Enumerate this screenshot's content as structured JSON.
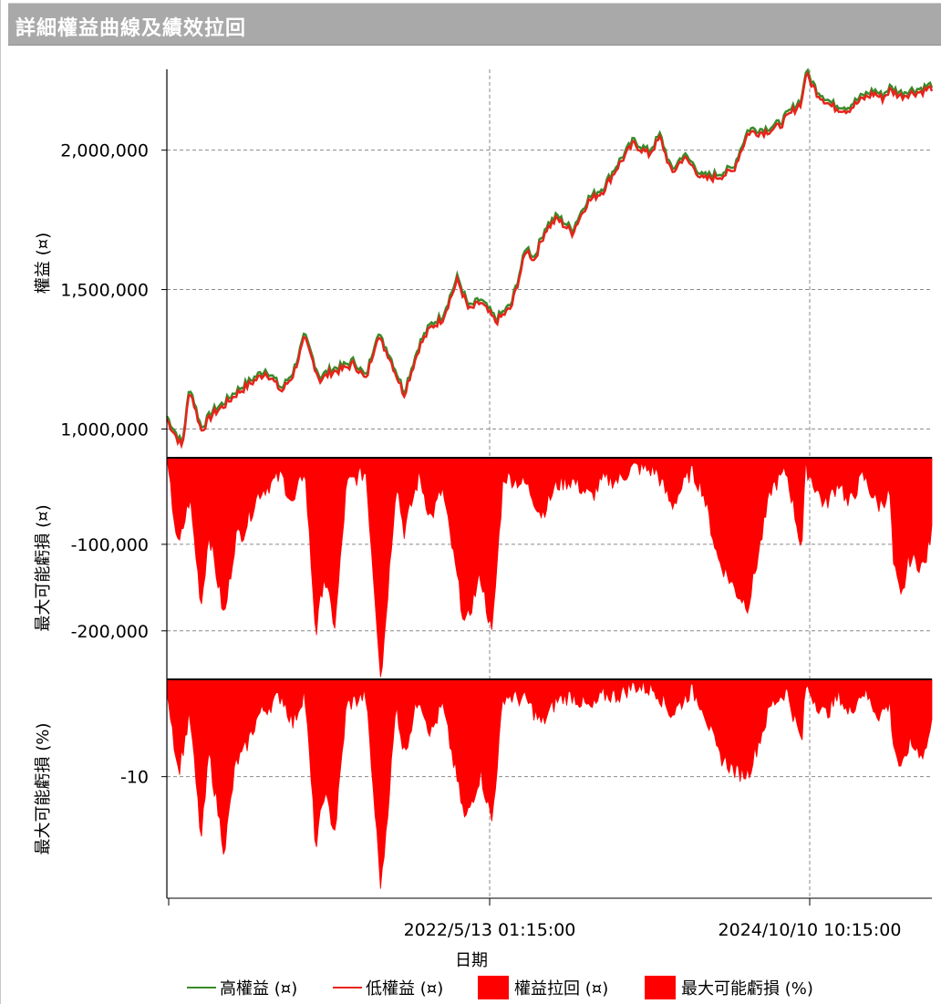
{
  "window": {
    "title": "詳細權益曲線及績效拉回"
  },
  "colors": {
    "high_equity": "#3a8a2a",
    "low_equity": "#e8231a",
    "drawdown": "#ff0000",
    "grid": "#8a8a8a"
  },
  "chart_data": {
    "type": "line",
    "xlabel": "日期",
    "x_tick_labels": [
      "2022/5/13 01:15:00",
      "2024/10/10 10:15:00"
    ],
    "panels": [
      {
        "name": "equity",
        "ylabel": "權益 (¤)",
        "ylim": [
          900000,
          2290000
        ],
        "yticks": [
          1000000,
          1500000,
          2000000
        ],
        "ytick_labels": [
          "1,000,000",
          "1,500,000",
          "2,000,000"
        ],
        "series": [
          {
            "name": "高權益 (¤)",
            "style": "line"
          },
          {
            "name": "低權益 (¤)",
            "style": "line"
          }
        ],
        "x": [
          0,
          0.02,
          0.03,
          0.045,
          0.06,
          0.075,
          0.09,
          0.11,
          0.13,
          0.15,
          0.165,
          0.18,
          0.2,
          0.215,
          0.23,
          0.245,
          0.26,
          0.275,
          0.29,
          0.31,
          0.33,
          0.345,
          0.36,
          0.38,
          0.395,
          0.41,
          0.43,
          0.45,
          0.47,
          0.48,
          0.495,
          0.51,
          0.53,
          0.55,
          0.57,
          0.59,
          0.61,
          0.63,
          0.645,
          0.66,
          0.675,
          0.69,
          0.7,
          0.72,
          0.74,
          0.76,
          0.78,
          0.8,
          0.83,
          0.835,
          0.85,
          0.87,
          0.89,
          0.91,
          0.925,
          0.935,
          0.945,
          0.96,
          0.97,
          0.985,
          1.0
        ],
        "values": [
          1040000,
          940000,
          1150000,
          1000000,
          1060000,
          1090000,
          1130000,
          1170000,
          1210000,
          1140000,
          1200000,
          1330000,
          1180000,
          1210000,
          1220000,
          1240000,
          1180000,
          1340000,
          1270000,
          1130000,
          1300000,
          1370000,
          1400000,
          1540000,
          1430000,
          1460000,
          1390000,
          1440000,
          1650000,
          1610000,
          1720000,
          1760000,
          1710000,
          1820000,
          1860000,
          1950000,
          2030000,
          1990000,
          2050000,
          1920000,
          1980000,
          1940000,
          1900000,
          1910000,
          1930000,
          2070000,
          2070000,
          2090000,
          2180000,
          2280000,
          2210000,
          2160000,
          2150000,
          2190000,
          2210000,
          2190000,
          2220000,
          2200000,
          2210000,
          2215000,
          2230000
        ]
      },
      {
        "name": "drawdown_amount",
        "ylabel": "最大可能虧損 (¤)",
        "ylim": [
          -255000,
          0
        ],
        "yticks": [
          -100000,
          -200000
        ],
        "ytick_labels": [
          "-100,000",
          "-200,000"
        ],
        "series": [
          {
            "name": "權益拉回 (¤)",
            "style": "area"
          }
        ],
        "x": [
          0,
          0.015,
          0.03,
          0.045,
          0.055,
          0.075,
          0.09,
          0.1,
          0.12,
          0.135,
          0.15,
          0.165,
          0.18,
          0.195,
          0.205,
          0.22,
          0.235,
          0.26,
          0.28,
          0.3,
          0.31,
          0.33,
          0.345,
          0.36,
          0.39,
          0.41,
          0.425,
          0.44,
          0.47,
          0.49,
          0.51,
          0.53,
          0.555,
          0.57,
          0.59,
          0.61,
          0.64,
          0.66,
          0.685,
          0.7,
          0.72,
          0.745,
          0.76,
          0.79,
          0.81,
          0.83,
          0.835,
          0.86,
          0.88,
          0.89,
          0.91,
          0.93,
          0.945,
          0.95,
          0.96,
          0.97,
          0.99,
          1.0
        ],
        "values": [
          -10000,
          -110000,
          -50000,
          -175000,
          -90000,
          -190000,
          -95000,
          -90000,
          -45000,
          -35000,
          -25000,
          -60000,
          -15000,
          -210000,
          -140000,
          -200000,
          -35000,
          -20000,
          -260000,
          -30000,
          -90000,
          -25000,
          -75000,
          -40000,
          -200000,
          -140000,
          -210000,
          -25000,
          -35000,
          -70000,
          -35000,
          -30000,
          -50000,
          -30000,
          -30000,
          -15000,
          -20000,
          -60000,
          -20000,
          -40000,
          -120000,
          -160000,
          -175000,
          -40000,
          -20000,
          -110000,
          -15000,
          -60000,
          -30000,
          -60000,
          -25000,
          -60000,
          -45000,
          -130000,
          -170000,
          -120000,
          -130000,
          -90000
        ]
      },
      {
        "name": "drawdown_percent",
        "ylabel": "最大可能虧損 (%)",
        "ylim": [
          -22.5,
          0
        ],
        "yticks": [
          -10
        ],
        "ytick_labels": [
          "-10"
        ],
        "series": [
          {
            "name": "最大可能虧損 (%)",
            "style": "area"
          }
        ],
        "x": [
          0,
          0.015,
          0.03,
          0.045,
          0.055,
          0.075,
          0.09,
          0.1,
          0.12,
          0.135,
          0.15,
          0.165,
          0.18,
          0.195,
          0.205,
          0.22,
          0.235,
          0.26,
          0.28,
          0.3,
          0.31,
          0.33,
          0.345,
          0.36,
          0.39,
          0.41,
          0.425,
          0.44,
          0.47,
          0.49,
          0.51,
          0.53,
          0.555,
          0.57,
          0.59,
          0.61,
          0.64,
          0.66,
          0.685,
          0.7,
          0.72,
          0.745,
          0.76,
          0.79,
          0.81,
          0.83,
          0.835,
          0.86,
          0.88,
          0.89,
          0.91,
          0.93,
          0.945,
          0.95,
          0.96,
          0.97,
          0.99,
          1.0
        ],
        "values": [
          -1,
          -10,
          -4,
          -17,
          -8,
          -18,
          -9,
          -8,
          -4,
          -3,
          -2,
          -5,
          -1.5,
          -18,
          -12,
          -16,
          -3,
          -2,
          -22,
          -3,
          -8,
          -2,
          -6,
          -3,
          -15,
          -10,
          -15,
          -2,
          -2.5,
          -5,
          -2.5,
          -2,
          -3.5,
          -2,
          -2,
          -1,
          -1.5,
          -4,
          -1.5,
          -3,
          -8,
          -10,
          -10,
          -3,
          -1.5,
          -7,
          -1,
          -4,
          -2,
          -4,
          -1.5,
          -4,
          -3,
          -7,
          -10,
          -7,
          -8,
          -5
        ]
      }
    ],
    "legend": {
      "placement": "bottom",
      "entries": [
        {
          "label": "高權益 (¤)",
          "style": "line",
          "color": "#3a8a2a"
        },
        {
          "label": "低權益 (¤)",
          "style": "line",
          "color": "#e8231a"
        },
        {
          "label": "權益拉回 (¤)",
          "style": "box",
          "color": "#ff0000"
        },
        {
          "label": "最大可能虧損 (%)",
          "style": "box",
          "color": "#ff0000"
        }
      ]
    },
    "grid": true
  }
}
